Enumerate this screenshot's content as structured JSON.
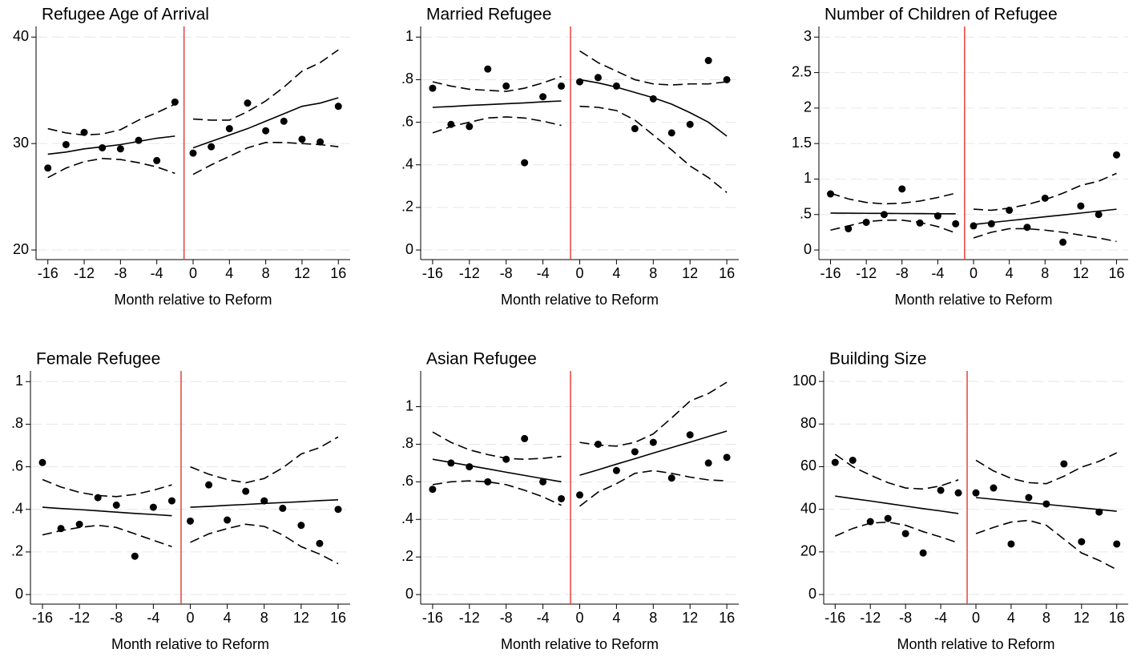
{
  "chart_data": [
    {
      "type": "scatter",
      "title": "Refugee Age of Arrival",
      "xlabel": "Month relative to Reform",
      "x": [
        -16,
        -14,
        -12,
        -10,
        -8,
        -6,
        -4,
        -2,
        0,
        2,
        4,
        6,
        8,
        10,
        12,
        14,
        16
      ],
      "values": [
        27.7,
        29.9,
        31.05,
        29.6,
        29.5,
        30.3,
        28.4,
        33.9,
        29.1,
        29.7,
        31.4,
        33.8,
        31.2,
        32.1,
        30.4,
        30.15,
        33.5
      ],
      "fit": [
        29.0,
        29.2,
        29.5,
        29.7,
        29.9,
        30.2,
        30.5,
        30.7,
        29.6,
        30.2,
        30.8,
        31.4,
        32.1,
        32.8,
        33.5,
        33.8,
        34.3
      ],
      "ci_upper": [
        31.4,
        31.0,
        30.8,
        30.9,
        31.3,
        32.2,
        32.9,
        33.7,
        32.3,
        32.2,
        32.2,
        33.0,
        34.0,
        35.3,
        36.8,
        37.6,
        38.8
      ],
      "ci_lower": [
        26.8,
        27.7,
        28.3,
        28.6,
        28.5,
        28.2,
        27.8,
        27.2,
        27.1,
        28.0,
        28.8,
        29.6,
        30.1,
        30.1,
        30.0,
        29.9,
        29.7
      ],
      "cutoff": -1,
      "cutoff_color": "#e8413a",
      "color": "#000000",
      "xlim": [
        -17.3,
        17.3
      ],
      "ylim": [
        19.1,
        41
      ],
      "xticks": [
        -16,
        -12,
        -8,
        -4,
        0,
        4,
        8,
        12,
        16
      ],
      "yticks": [
        20,
        30,
        40
      ],
      "grid": true
    },
    {
      "type": "scatter",
      "title": "Married Refugee",
      "xlabel": "Month relative to Reform",
      "x": [
        -16,
        -14,
        -12,
        -10,
        -8,
        -6,
        -4,
        -2,
        0,
        2,
        4,
        6,
        8,
        10,
        12,
        14,
        16
      ],
      "values": [
        0.76,
        0.59,
        0.58,
        0.85,
        0.77,
        0.41,
        0.72,
        0.77,
        0.79,
        0.81,
        0.77,
        0.57,
        0.71,
        0.55,
        0.59,
        0.89,
        0.8
      ],
      "fit": [
        0.67,
        0.674,
        0.679,
        0.683,
        0.687,
        0.691,
        0.696,
        0.7,
        0.8,
        0.785,
        0.765,
        0.74,
        0.715,
        0.685,
        0.645,
        0.6,
        0.535
      ],
      "ci_upper": [
        0.79,
        0.77,
        0.755,
        0.75,
        0.745,
        0.76,
        0.785,
        0.815,
        0.935,
        0.88,
        0.84,
        0.8,
        0.78,
        0.775,
        0.78,
        0.78,
        0.79
      ],
      "ci_lower": [
        0.55,
        0.58,
        0.6,
        0.62,
        0.625,
        0.62,
        0.605,
        0.585,
        0.675,
        0.67,
        0.655,
        0.61,
        0.54,
        0.47,
        0.395,
        0.34,
        0.27
      ],
      "cutoff": -1,
      "cutoff_color": "#e8413a",
      "color": "#000000",
      "xlim": [
        -17.3,
        17.3
      ],
      "ylim": [
        -0.045,
        1.05
      ],
      "xticks": [
        -16,
        -12,
        -8,
        -4,
        0,
        4,
        8,
        12,
        16
      ],
      "yticks": [
        0,
        {
          "value": 0.2,
          "label": ".2"
        },
        {
          "value": 0.4,
          "label": ".4"
        },
        {
          "value": 0.6,
          "label": ".6"
        },
        {
          "value": 0.8,
          "label": ".8"
        },
        1
      ],
      "grid": true
    },
    {
      "type": "scatter",
      "title": "Number of Children of Refugee",
      "xlabel": "Month relative to Reform",
      "x": [
        -16,
        -14,
        -12,
        -10,
        -8,
        -6,
        -4,
        -2,
        0,
        2,
        4,
        6,
        8,
        10,
        12,
        14,
        16
      ],
      "values": [
        0.79,
        0.3,
        0.39,
        0.5,
        0.86,
        0.38,
        0.48,
        0.37,
        0.34,
        0.37,
        0.56,
        0.32,
        0.73,
        0.11,
        0.62,
        0.5,
        1.34
      ],
      "fit": [
        0.52,
        0.519,
        0.517,
        0.516,
        0.514,
        0.513,
        0.511,
        0.51,
        0.36,
        0.387,
        0.414,
        0.441,
        0.468,
        0.494,
        0.521,
        0.548,
        0.575
      ],
      "ci_upper": [
        0.8,
        0.72,
        0.67,
        0.65,
        0.66,
        0.69,
        0.74,
        0.8,
        0.575,
        0.56,
        0.59,
        0.64,
        0.71,
        0.8,
        0.91,
        0.97,
        1.08
      ],
      "ci_lower": [
        0.28,
        0.34,
        0.4,
        0.42,
        0.42,
        0.39,
        0.33,
        0.24,
        0.17,
        0.25,
        0.3,
        0.3,
        0.28,
        0.25,
        0.21,
        0.17,
        0.12
      ],
      "cutoff": -1,
      "cutoff_color": "#e8413a",
      "color": "#000000",
      "xlim": [
        -17.3,
        17.3
      ],
      "ylim": [
        -0.135,
        3.15
      ],
      "xticks": [
        -16,
        -12,
        -8,
        -4,
        0,
        4,
        8,
        12,
        16
      ],
      "yticks": [
        0,
        {
          "value": 0.5,
          "label": ".5"
        },
        1,
        1.5,
        2,
        2.5,
        3
      ],
      "grid": true
    },
    {
      "type": "scatter",
      "title": "Female Refugee",
      "xlabel": "Month relative to Reform",
      "x": [
        -16,
        -14,
        -12,
        -10,
        -8,
        -6,
        -4,
        -2,
        0,
        2,
        4,
        6,
        8,
        10,
        12,
        14,
        16
      ],
      "values": [
        0.62,
        0.31,
        0.33,
        0.455,
        0.42,
        0.18,
        0.41,
        0.44,
        0.345,
        0.515,
        0.35,
        0.485,
        0.44,
        0.405,
        0.325,
        0.24,
        0.4
      ],
      "fit": [
        0.41,
        0.404,
        0.399,
        0.393,
        0.387,
        0.381,
        0.376,
        0.37,
        0.41,
        0.414,
        0.419,
        0.423,
        0.428,
        0.432,
        0.436,
        0.441,
        0.445
      ],
      "ci_upper": [
        0.54,
        0.505,
        0.48,
        0.465,
        0.46,
        0.47,
        0.49,
        0.515,
        0.6,
        0.565,
        0.54,
        0.525,
        0.545,
        0.595,
        0.66,
        0.69,
        0.74
      ],
      "ci_lower": [
        0.28,
        0.3,
        0.315,
        0.325,
        0.315,
        0.285,
        0.255,
        0.225,
        0.245,
        0.285,
        0.31,
        0.33,
        0.32,
        0.28,
        0.225,
        0.19,
        0.145
      ],
      "cutoff": -1,
      "cutoff_color": "#e8413a",
      "color": "#000000",
      "xlim": [
        -17.3,
        17.3
      ],
      "ylim": [
        -0.045,
        1.05
      ],
      "xticks": [
        -16,
        -12,
        -8,
        -4,
        0,
        4,
        8,
        12,
        16
      ],
      "yticks": [
        0,
        {
          "value": 0.2,
          "label": ".2"
        },
        {
          "value": 0.4,
          "label": ".4"
        },
        {
          "value": 0.6,
          "label": ".6"
        },
        {
          "value": 0.8,
          "label": ".8"
        },
        1
      ],
      "grid": true
    },
    {
      "type": "scatter",
      "title": "Asian Refugee",
      "xlabel": "Month relative to Reform",
      "x": [
        -16,
        -14,
        -12,
        -10,
        -8,
        -6,
        -4,
        -2,
        0,
        2,
        4,
        6,
        8,
        10,
        12,
        14,
        16
      ],
      "values": [
        0.56,
        0.7,
        0.68,
        0.6,
        0.72,
        0.83,
        0.6,
        0.51,
        0.53,
        0.8,
        0.66,
        0.76,
        0.81,
        0.62,
        0.85,
        0.7,
        0.73
      ],
      "fit": [
        0.72,
        0.703,
        0.686,
        0.669,
        0.651,
        0.634,
        0.617,
        0.6,
        0.635,
        0.664,
        0.694,
        0.723,
        0.753,
        0.782,
        0.811,
        0.841,
        0.87
      ],
      "ci_upper": [
        0.865,
        0.81,
        0.77,
        0.745,
        0.725,
        0.72,
        0.725,
        0.735,
        0.81,
        0.795,
        0.79,
        0.81,
        0.855,
        0.94,
        1.03,
        1.07,
        1.13
      ],
      "ci_lower": [
        0.585,
        0.6,
        0.605,
        0.6,
        0.585,
        0.555,
        0.52,
        0.475,
        0.47,
        0.545,
        0.59,
        0.645,
        0.66,
        0.645,
        0.625,
        0.61,
        0.605
      ],
      "cutoff": -1,
      "cutoff_color": "#e8413a",
      "color": "#000000",
      "xlim": [
        -17.3,
        17.3
      ],
      "ylim": [
        -0.051,
        1.19
      ],
      "xticks": [
        -16,
        -12,
        -8,
        -4,
        0,
        4,
        8,
        12,
        16
      ],
      "yticks": [
        0,
        {
          "value": 0.2,
          "label": ".2"
        },
        {
          "value": 0.4,
          "label": ".4"
        },
        {
          "value": 0.6,
          "label": ".6"
        },
        {
          "value": 0.8,
          "label": ".8"
        },
        1
      ],
      "grid": true
    },
    {
      "type": "scatter",
      "title": "Building Size",
      "xlabel": "Month relative to Reform",
      "x": [
        -16,
        -14,
        -12,
        -10,
        -8,
        -6,
        -4,
        -2,
        0,
        2,
        4,
        6,
        8,
        10,
        12,
        14,
        16
      ],
      "values": [
        62,
        63,
        34.2,
        35.7,
        28.6,
        19.5,
        48.9,
        47.7,
        47.7,
        50,
        23.7,
        45.5,
        42.5,
        61.3,
        24.8,
        38.7,
        23.7
      ],
      "fit": [
        46.2,
        45.0,
        43.9,
        42.7,
        41.5,
        40.3,
        39.2,
        38.0,
        45.5,
        44.7,
        43.9,
        43.1,
        42.3,
        41.5,
        40.7,
        39.9,
        39.1
      ],
      "ci_upper": [
        65.8,
        60,
        56,
        52.5,
        50,
        49.5,
        51,
        53.8,
        63,
        58,
        54.5,
        52.5,
        52,
        55.5,
        59.8,
        62.5,
        66.5
      ],
      "ci_lower": [
        27.4,
        31,
        33.5,
        34,
        32.5,
        29.5,
        27,
        24.2,
        28.6,
        31.5,
        34,
        34.8,
        32.5,
        26,
        19.5,
        16,
        11.7
      ],
      "cutoff": -1,
      "cutoff_color": "#e8413a",
      "color": "#000000",
      "xlim": [
        -17.3,
        17.3
      ],
      "ylim": [
        -4.5,
        104.9
      ],
      "xticks": [
        -16,
        -12,
        -8,
        -4,
        0,
        4,
        8,
        12,
        16
      ],
      "yticks": [
        0,
        20,
        40,
        60,
        80,
        100
      ],
      "grid": true
    }
  ]
}
